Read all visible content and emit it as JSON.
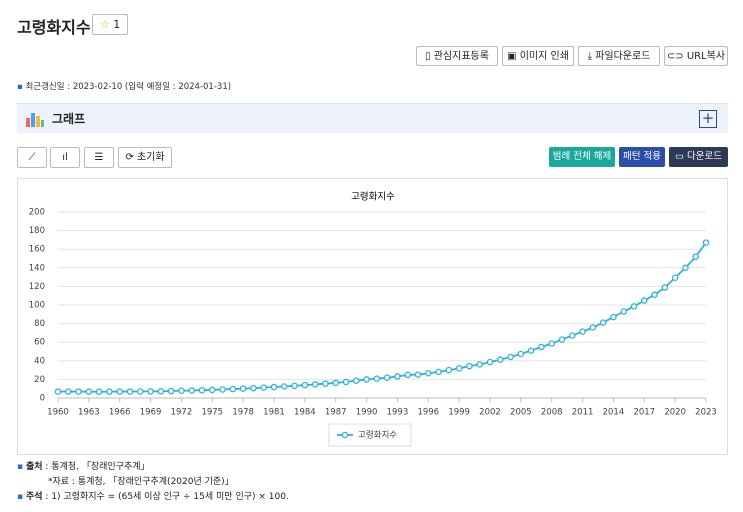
{
  "header": {
    "title": "고령화지수",
    "star_count": 1
  },
  "actions": [
    "관심지표등록",
    "이미지 인쇄",
    "파일다운로드",
    "URL복사"
  ],
  "update_info": "최근갱신일 : 2023-02-10 (입력 예정일 : 2024-01-31)",
  "section": {
    "title": "그래프"
  },
  "toolbar": {
    "reset": "초기화",
    "legend_off": "범례 전체 해제",
    "pattern": "패턴 적용",
    "download": "다운로드"
  },
  "chart_data": {
    "type": "line",
    "title": "고령화지수",
    "x": [
      1960,
      1961,
      1962,
      1963,
      1964,
      1965,
      1966,
      1967,
      1968,
      1969,
      1970,
      1971,
      1972,
      1973,
      1974,
      1975,
      1976,
      1977,
      1978,
      1979,
      1980,
      1981,
      1982,
      1983,
      1984,
      1985,
      1986,
      1987,
      1988,
      1989,
      1990,
      1991,
      1992,
      1993,
      1994,
      1995,
      1996,
      1997,
      1998,
      1999,
      2000,
      2001,
      2002,
      2003,
      2004,
      2005,
      2006,
      2007,
      2008,
      2009,
      2010,
      2011,
      2012,
      2013,
      2014,
      2015,
      2016,
      2017,
      2018,
      2019,
      2020,
      2021,
      2022,
      2023
    ],
    "series": [
      {
        "name": "고령화지수",
        "color": "#2db3d6",
        "values": [
          6.9,
          6.9,
          6.9,
          6.8,
          6.8,
          6.8,
          6.9,
          6.9,
          7.0,
          7.1,
          7.2,
          7.5,
          7.8,
          8.1,
          8.4,
          8.7,
          9.2,
          9.6,
          10.1,
          10.6,
          11.2,
          11.8,
          12.4,
          13.1,
          13.9,
          14.6,
          15.4,
          16.2,
          17.3,
          18.6,
          20.0,
          20.8,
          21.8,
          23.2,
          24.8,
          25.2,
          26.6,
          28.1,
          30.0,
          31.9,
          34.3,
          36.2,
          38.6,
          41.2,
          44.1,
          47.3,
          51.0,
          54.8,
          58.6,
          62.8,
          67.2,
          71.4,
          75.8,
          81.1,
          87.0,
          93.0,
          98.5,
          104.8,
          111.1,
          118.8,
          129.3,
          140.0,
          152.0,
          167.1
        ]
      }
    ],
    "xlim": [
      1960,
      2023
    ],
    "xticks": [
      1960,
      1963,
      1966,
      1969,
      1972,
      1975,
      1978,
      1981,
      1984,
      1987,
      1990,
      1993,
      1996,
      1999,
      2002,
      2005,
      2008,
      2011,
      2014,
      2017,
      2020,
      2023
    ],
    "ylim": [
      0,
      200
    ],
    "yticks": [
      0,
      20,
      40,
      60,
      80,
      100,
      120,
      140,
      160,
      180,
      200
    ],
    "grid": true,
    "legend": "bottom"
  },
  "footer": {
    "source_label": "출처",
    "source": ": 통계청, 「장래인구추계」",
    "data_note": "*자료 : 통계청, 「장래인구추계(2020년 기준)」",
    "note_label": "주석",
    "note": ": 1) 고령화지수 = (65세 이상 인구 ÷ 15세 미만 인구) × 100."
  }
}
